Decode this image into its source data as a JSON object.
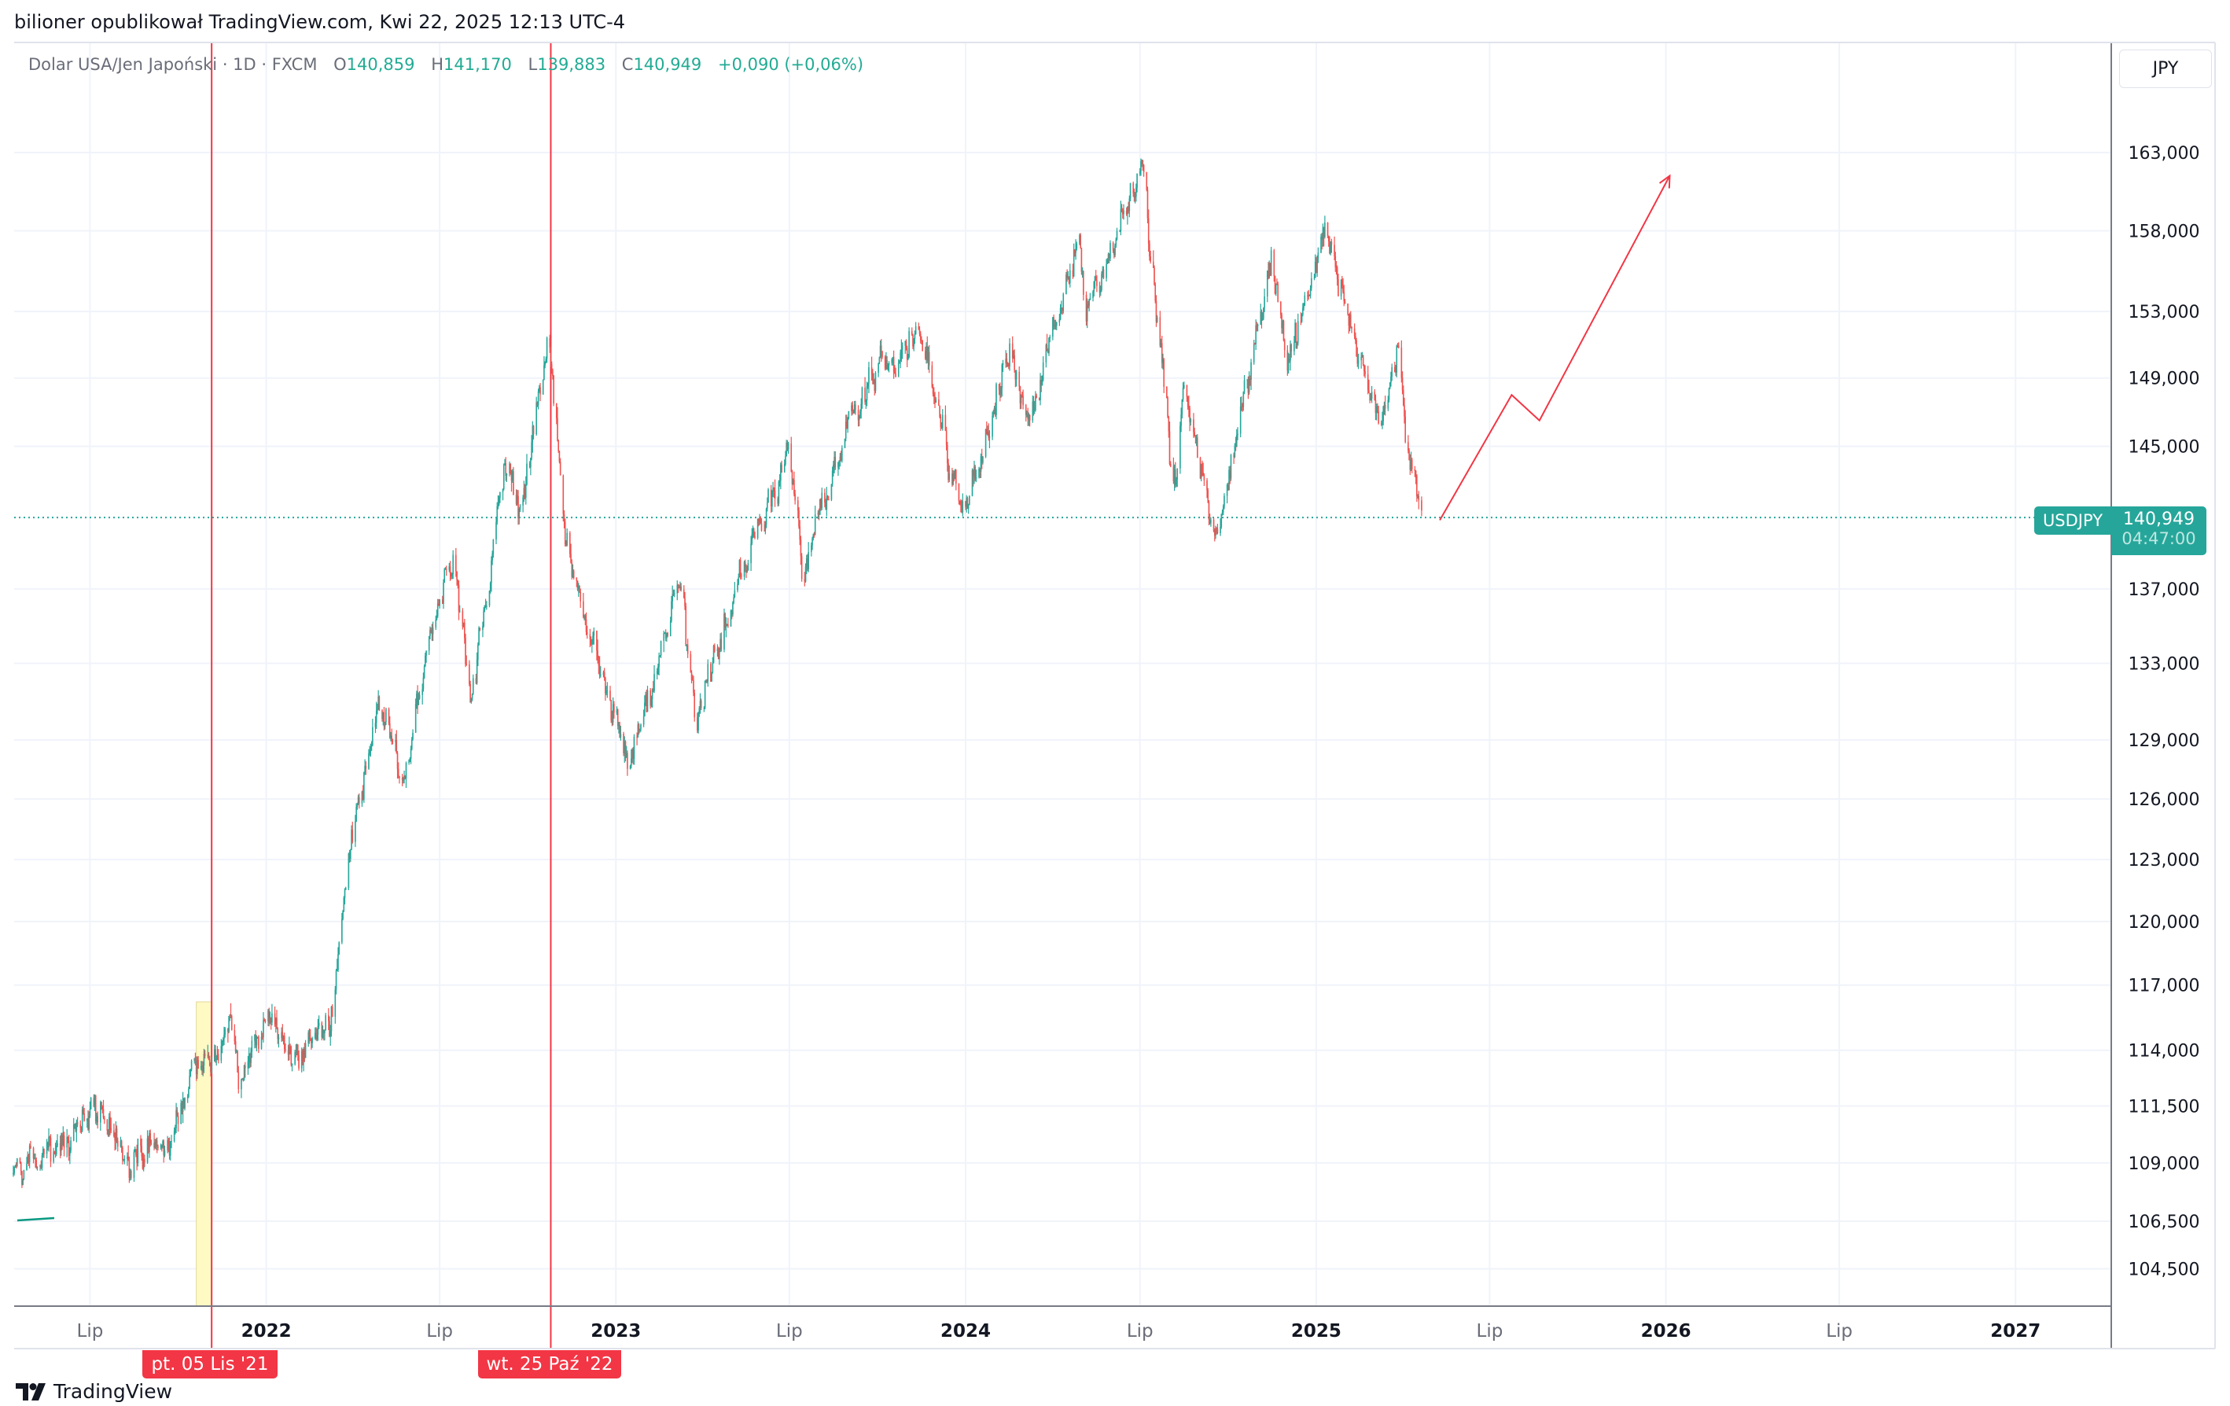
{
  "header": {
    "published": "bilioner opublikował TradingView.com, Kwi 22, 2025 12:13 UTC-4"
  },
  "legend": {
    "title": "Dolar USA/Jen Japoński · 1D · FXCM",
    "o_label": "O",
    "open": "140,859",
    "h_label": "H",
    "high": "141,170",
    "l_label": "L",
    "low": "139,883",
    "c_label": "C",
    "close": "140,949",
    "change": "+0,090 (+0,06%)"
  },
  "currency_button": "JPY",
  "price_label": {
    "symbol": "USDJPY",
    "price": "140,949",
    "countdown": "04:47:00"
  },
  "markers": [
    {
      "date": "2021-11-05",
      "label": "pt. 05 Lis '21"
    },
    {
      "date": "2022-10-25",
      "label": "wt. 25 Paź '22"
    }
  ],
  "footer": {
    "logo": "TradingView"
  },
  "colors": {
    "up": "#26a69a",
    "down": "#ef5350",
    "marker": "#f23645",
    "grid": "#f0f3fa",
    "highlight": "#fff9c4",
    "last": "#26a69a"
  },
  "chart_data": {
    "type": "candlestick",
    "symbol": "USDJPY",
    "scale": "log",
    "ylim": [
      103500,
      166000
    ],
    "xlim": [
      "2021-04-07",
      "2027-05-01"
    ],
    "yticks": [
      {
        "value": 163000,
        "label": "163,000"
      },
      {
        "value": 158000,
        "label": "158,000"
      },
      {
        "value": 153000,
        "label": "153,000"
      },
      {
        "value": 149000,
        "label": "149,000"
      },
      {
        "value": 145000,
        "label": "145,000"
      },
      {
        "value": 137000,
        "label": "137,000"
      },
      {
        "value": 133000,
        "label": "133,000"
      },
      {
        "value": 129000,
        "label": "129,000"
      },
      {
        "value": 126000,
        "label": "126,000"
      },
      {
        "value": 123000,
        "label": "123,000"
      },
      {
        "value": 120000,
        "label": "120,000"
      },
      {
        "value": 117000,
        "label": "117,000"
      },
      {
        "value": 114000,
        "label": "114,000"
      },
      {
        "value": 111500,
        "label": "111,500"
      },
      {
        "value": 109000,
        "label": "109,000"
      },
      {
        "value": 106500,
        "label": "106,500"
      },
      {
        "value": 104500,
        "label": "104,500"
      }
    ],
    "xticks": [
      {
        "date": "2021-07-01",
        "label": "Lip",
        "bold": false
      },
      {
        "date": "2022-01-01",
        "label": "2022",
        "bold": true
      },
      {
        "date": "2022-07-01",
        "label": "Lip",
        "bold": false
      },
      {
        "date": "2023-01-01",
        "label": "2023",
        "bold": true
      },
      {
        "date": "2023-07-01",
        "label": "Lip",
        "bold": false
      },
      {
        "date": "2024-01-01",
        "label": "2024",
        "bold": true
      },
      {
        "date": "2024-07-01",
        "label": "Lip",
        "bold": false
      },
      {
        "date": "2025-01-01",
        "label": "2025",
        "bold": true
      },
      {
        "date": "2025-07-01",
        "label": "Lip",
        "bold": false
      },
      {
        "date": "2026-01-01",
        "label": "2026",
        "bold": true
      },
      {
        "date": "2026-07-01",
        "label": "Lip",
        "bold": false
      },
      {
        "date": "2027-01-01",
        "label": "2027",
        "bold": true
      }
    ],
    "last_price": 140949,
    "price_path": [
      [
        "2021-04-12",
        108.5
      ],
      [
        "2021-05-10",
        109.2
      ],
      [
        "2021-06-01",
        109.8
      ],
      [
        "2021-07-01",
        111.4
      ],
      [
        "2021-08-10",
        109.5
      ],
      [
        "2021-09-20",
        109.8
      ],
      [
        "2021-10-20",
        114.0
      ],
      [
        "2021-11-05",
        113.5
      ],
      [
        "2021-11-24",
        115.3
      ],
      [
        "2021-12-03",
        113.0
      ],
      [
        "2022-01-04",
        116.0
      ],
      [
        "2022-01-25",
        113.8
      ],
      [
        "2022-02-20",
        115.0
      ],
      [
        "2022-03-07",
        115.3
      ],
      [
        "2022-03-28",
        123.5
      ],
      [
        "2022-04-28",
        130.8
      ],
      [
        "2022-05-24",
        126.8
      ],
      [
        "2022-06-29",
        136.5
      ],
      [
        "2022-07-14",
        139.0
      ],
      [
        "2022-08-02",
        131.0
      ],
      [
        "2022-09-07",
        144.5
      ],
      [
        "2022-09-22",
        141.0
      ],
      [
        "2022-10-21",
        151.5
      ],
      [
        "2022-11-11",
        138.7
      ],
      [
        "2022-12-01",
        135.5
      ],
      [
        "2022-12-20",
        131.5
      ],
      [
        "2023-01-16",
        127.5
      ],
      [
        "2023-03-08",
        137.5
      ],
      [
        "2023-03-24",
        130.0
      ],
      [
        "2023-04-28",
        136.0
      ],
      [
        "2023-05-30",
        140.5
      ],
      [
        "2023-06-30",
        144.8
      ],
      [
        "2023-07-14",
        137.7
      ],
      [
        "2023-08-30",
        146.5
      ],
      [
        "2023-10-03",
        149.9
      ],
      [
        "2023-10-13",
        149.5
      ],
      [
        "2023-11-13",
        151.8
      ],
      [
        "2023-12-28",
        140.9
      ],
      [
        "2024-02-13",
        150.5
      ],
      [
        "2024-03-08",
        146.5
      ],
      [
        "2024-03-28",
        151.3
      ],
      [
        "2024-04-29",
        158.0
      ],
      [
        "2024-05-03",
        152.8
      ],
      [
        "2024-06-26",
        160.8
      ],
      [
        "2024-07-03",
        161.9
      ],
      [
        "2024-08-05",
        142.0
      ],
      [
        "2024-08-15",
        149.0
      ],
      [
        "2024-09-16",
        139.6
      ],
      [
        "2024-10-01",
        143.5
      ],
      [
        "2024-11-15",
        156.7
      ],
      [
        "2024-12-03",
        149.5
      ],
      [
        "2025-01-10",
        158.5
      ],
      [
        "2025-02-07",
        151.5
      ],
      [
        "2025-03-11",
        146.6
      ],
      [
        "2025-03-28",
        151.0
      ],
      [
        "2025-04-04",
        145.0
      ],
      [
        "2025-04-21",
        140.9
      ]
    ],
    "highlight_range": [
      "2021-10-20",
      "2021-11-05"
    ],
    "forecast_path": [
      [
        "2025-05-10",
        140.8
      ],
      [
        "2025-07-24",
        148.0
      ],
      [
        "2025-08-22",
        146.5
      ],
      [
        "2026-01-05",
        161.5
      ]
    ]
  }
}
